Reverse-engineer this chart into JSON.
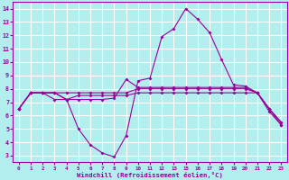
{
  "xlabel": "Windchill (Refroidissement éolien,°C)",
  "bg_color": "#b3eeee",
  "grid_color": "#ffffff",
  "line_color": "#990099",
  "xlim": [
    -0.5,
    22.5
  ],
  "ylim": [
    2.5,
    14.5
  ],
  "xtick_positions": [
    0,
    1,
    2,
    3,
    4,
    5,
    6,
    7,
    8,
    9,
    10,
    11,
    12,
    13,
    14,
    15,
    16,
    17,
    18,
    19,
    20,
    21,
    22
  ],
  "xtick_labels": [
    "0",
    "1",
    "2",
    "3",
    "4",
    "5",
    "6",
    "7",
    "8",
    "9",
    "10",
    "11",
    "12",
    "13",
    "15",
    "16",
    "17",
    "18",
    "19",
    "20",
    "21",
    "22",
    "23"
  ],
  "yticks": [
    3,
    4,
    5,
    6,
    7,
    8,
    9,
    10,
    11,
    12,
    13,
    14
  ],
  "lines": [
    {
      "x": [
        0,
        1,
        2,
        3,
        4,
        5,
        6,
        7,
        8,
        9,
        10,
        11,
        12,
        13,
        14,
        15,
        16,
        17,
        18,
        19,
        20,
        21,
        22
      ],
      "y": [
        6.5,
        7.7,
        7.7,
        7.7,
        7.2,
        5.0,
        3.8,
        3.2,
        2.9,
        4.5,
        8.6,
        8.8,
        11.9,
        12.5,
        14.0,
        13.2,
        12.2,
        10.2,
        8.3,
        8.2,
        7.7,
        6.3,
        5.3
      ]
    },
    {
      "x": [
        0,
        1,
        2,
        3,
        4,
        5,
        6,
        7,
        8,
        9,
        10,
        11,
        12,
        13,
        14,
        15,
        16,
        17,
        18,
        19,
        20,
        21,
        22
      ],
      "y": [
        6.5,
        7.7,
        7.7,
        7.2,
        7.2,
        7.2,
        7.2,
        7.2,
        7.3,
        8.7,
        8.1,
        8.1,
        8.1,
        8.1,
        8.1,
        8.1,
        8.1,
        8.1,
        8.1,
        8.1,
        7.7,
        6.5,
        5.3
      ]
    },
    {
      "x": [
        0,
        1,
        2,
        3,
        4,
        5,
        6,
        7,
        8,
        9,
        10,
        11,
        12,
        13,
        14,
        15,
        16,
        17,
        18,
        19,
        20,
        21,
        22
      ],
      "y": [
        6.5,
        7.7,
        7.7,
        7.7,
        7.2,
        7.5,
        7.5,
        7.5,
        7.5,
        7.5,
        7.7,
        7.7,
        7.7,
        7.7,
        7.7,
        7.7,
        7.7,
        7.7,
        7.7,
        7.7,
        7.7,
        6.5,
        5.5
      ]
    },
    {
      "x": [
        0,
        1,
        2,
        3,
        4,
        5,
        6,
        7,
        8,
        9,
        10,
        11,
        12,
        13,
        14,
        15,
        16,
        17,
        18,
        19,
        20,
        21,
        22
      ],
      "y": [
        6.5,
        7.7,
        7.7,
        7.7,
        7.7,
        7.7,
        7.7,
        7.7,
        7.7,
        7.7,
        8.0,
        8.0,
        8.0,
        8.0,
        8.0,
        8.0,
        8.0,
        8.0,
        8.0,
        8.0,
        7.7,
        6.5,
        5.5
      ]
    }
  ]
}
